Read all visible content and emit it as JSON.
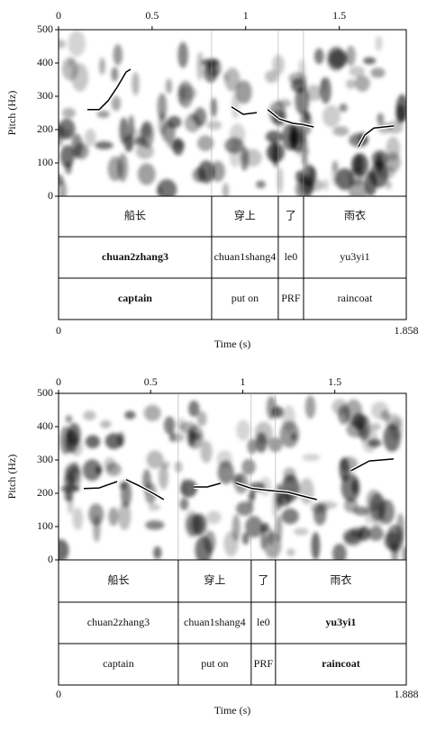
{
  "chart_data": [
    {
      "type": "line",
      "xlabel": "Time (s)",
      "ylabel": "Pitch (Hz)",
      "xlim": [
        0,
        1.858
      ],
      "ylim": [
        0,
        500
      ],
      "xticks": [
        0,
        0.5,
        1,
        1.5
      ],
      "yticks": [
        0,
        100,
        200,
        300,
        400,
        500
      ],
      "series": [
        {
          "color": "#000000",
          "x": [
            0.154,
            0.217,
            0.265,
            0.313,
            0.361,
            0.385,
            null,
            0.924,
            0.987,
            1.059,
            null,
            1.117,
            1.18,
            1.252,
            1.3,
            1.363,
            null,
            1.603,
            1.637,
            1.685,
            1.791
          ],
          "values": [
            260,
            260,
            287,
            327,
            373,
            381,
            null,
            268,
            246,
            251,
            null,
            260,
            232,
            219,
            216,
            208,
            null,
            149,
            184,
            205,
            211
          ]
        }
      ],
      "boundaries": [
        0.818,
        1.174,
        1.309
      ],
      "tiers": [
        {
          "labels": [
            "船长",
            "穿上",
            "了",
            "雨衣"
          ],
          "bold": [
            false,
            false,
            false,
            false
          ]
        },
        {
          "labels": [
            "chuan2zhang3",
            "chuan1shang4",
            "le0",
            "yu3yi1"
          ],
          "bold": [
            true,
            false,
            false,
            false
          ]
        },
        {
          "labels": [
            "captain",
            "put on",
            "PRF",
            "raincoat"
          ],
          "bold": [
            true,
            false,
            false,
            false
          ]
        }
      ]
    },
    {
      "type": "line",
      "xlabel": "Time (s)",
      "ylabel": "Pitch (Hz)",
      "xlim": [
        0,
        1.888
      ],
      "ylim": [
        0,
        500
      ],
      "xticks": [
        0,
        0.5,
        1,
        1.5
      ],
      "yticks": [
        0,
        100,
        200,
        300,
        400,
        500
      ],
      "series": [
        {
          "color": "#000000",
          "x": [
            0.137,
            0.22,
            0.318,
            null,
            0.367,
            0.44,
            0.513,
            0.572,
            null,
            0.734,
            0.807,
            0.88,
            null,
            0.963,
            1.051,
            1.149,
            1.247,
            1.345,
            1.403,
            null,
            1.589,
            1.687,
            1.819
          ],
          "values": [
            214,
            216,
            235,
            null,
            241,
            222,
            200,
            181,
            null,
            219,
            219,
            230,
            null,
            230,
            214,
            208,
            203,
            189,
            181,
            null,
            268,
            297,
            303
          ]
        }
      ],
      "boundaries": [
        0.65,
        1.046,
        1.178
      ],
      "tiers": [
        {
          "labels": [
            "船长",
            "穿上",
            "了",
            "雨衣"
          ],
          "bold": [
            false,
            false,
            false,
            false
          ]
        },
        {
          "labels": [
            "chuan2zhang3",
            "chuan1shang4",
            "le0",
            "yu3yi1"
          ],
          "bold": [
            false,
            false,
            false,
            true
          ]
        },
        {
          "labels": [
            "captain",
            "put on",
            "PRF",
            "raincoat"
          ],
          "bold": [
            false,
            false,
            false,
            true
          ]
        }
      ]
    }
  ]
}
